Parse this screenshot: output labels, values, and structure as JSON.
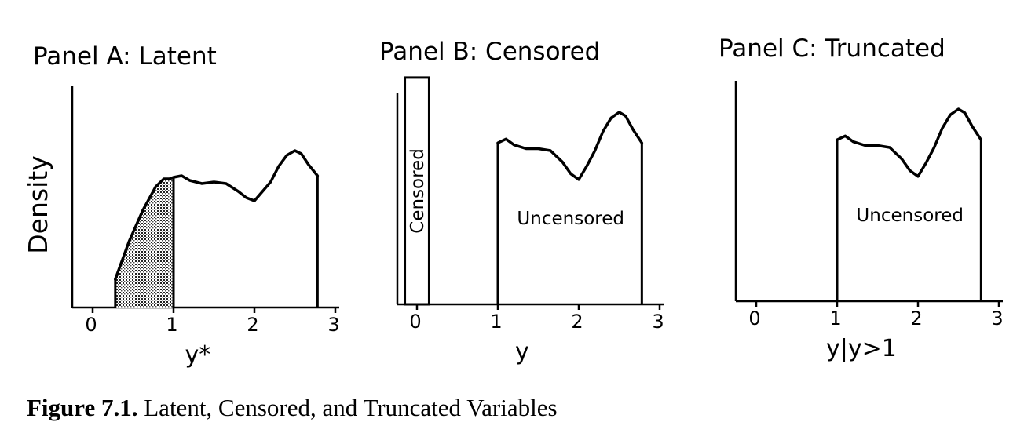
{
  "caption": {
    "figure_label": "Figure 7.1.",
    "text": "Latent, Censored, and Truncated Variables"
  },
  "chart_data": [
    {
      "type": "area",
      "title": "Panel A: Latent",
      "xlabel": "y*",
      "ylabel": "Density",
      "xlim": [
        -0.2,
        3.0
      ],
      "x_ticks": [
        "0",
        "1",
        "2",
        "3"
      ],
      "grid": false,
      "density_x": [
        0.28,
        0.45,
        0.62,
        0.78,
        0.88,
        0.95,
        1.0,
        1.1,
        1.2,
        1.35,
        1.5,
        1.65,
        1.8,
        1.9,
        2.0,
        2.1,
        2.2,
        2.3,
        2.4,
        2.5,
        2.58,
        2.67,
        2.78
      ],
      "density_y": [
        0.18,
        0.42,
        0.62,
        0.77,
        0.82,
        0.82,
        0.83,
        0.84,
        0.81,
        0.79,
        0.8,
        0.79,
        0.74,
        0.7,
        0.68,
        0.74,
        0.8,
        0.9,
        0.97,
        1.0,
        0.98,
        0.91,
        0.84
      ],
      "shaded_region": [
        0.28,
        1.0
      ],
      "ylim": [
        0,
        1
      ]
    },
    {
      "type": "area",
      "title": "Panel B: Censored",
      "xlabel": "y",
      "ylim": [
        0,
        1
      ],
      "xlim": [
        -0.2,
        3.0
      ],
      "x_ticks": [
        "0",
        "1",
        "2",
        "3"
      ],
      "grid": false,
      "censored_bar": {
        "x_range": [
          -0.15,
          0.15
        ],
        "height": 1.18,
        "label": "Censored"
      },
      "density_x": [
        1.0,
        1.1,
        1.2,
        1.35,
        1.5,
        1.65,
        1.8,
        1.9,
        2.0,
        2.1,
        2.2,
        2.3,
        2.4,
        2.5,
        2.58,
        2.67,
        2.78
      ],
      "density_y": [
        0.84,
        0.86,
        0.83,
        0.81,
        0.81,
        0.8,
        0.74,
        0.68,
        0.65,
        0.72,
        0.8,
        0.9,
        0.97,
        1.0,
        0.98,
        0.91,
        0.84
      ],
      "region_label": "Uncensored"
    },
    {
      "type": "area",
      "title": "Panel C: Truncated",
      "xlabel": "y|y>1",
      "ylim": [
        0,
        1
      ],
      "xlim": [
        -0.2,
        3.0
      ],
      "x_ticks": [
        "0",
        "1",
        "2",
        "3"
      ],
      "grid": false,
      "density_x": [
        1.0,
        1.1,
        1.2,
        1.35,
        1.5,
        1.65,
        1.8,
        1.9,
        2.0,
        2.1,
        2.2,
        2.3,
        2.4,
        2.5,
        2.58,
        2.67,
        2.78
      ],
      "density_y": [
        0.84,
        0.86,
        0.83,
        0.81,
        0.81,
        0.8,
        0.74,
        0.68,
        0.65,
        0.72,
        0.8,
        0.9,
        0.97,
        1.0,
        0.98,
        0.91,
        0.84
      ],
      "region_label": "Uncensored"
    }
  ]
}
